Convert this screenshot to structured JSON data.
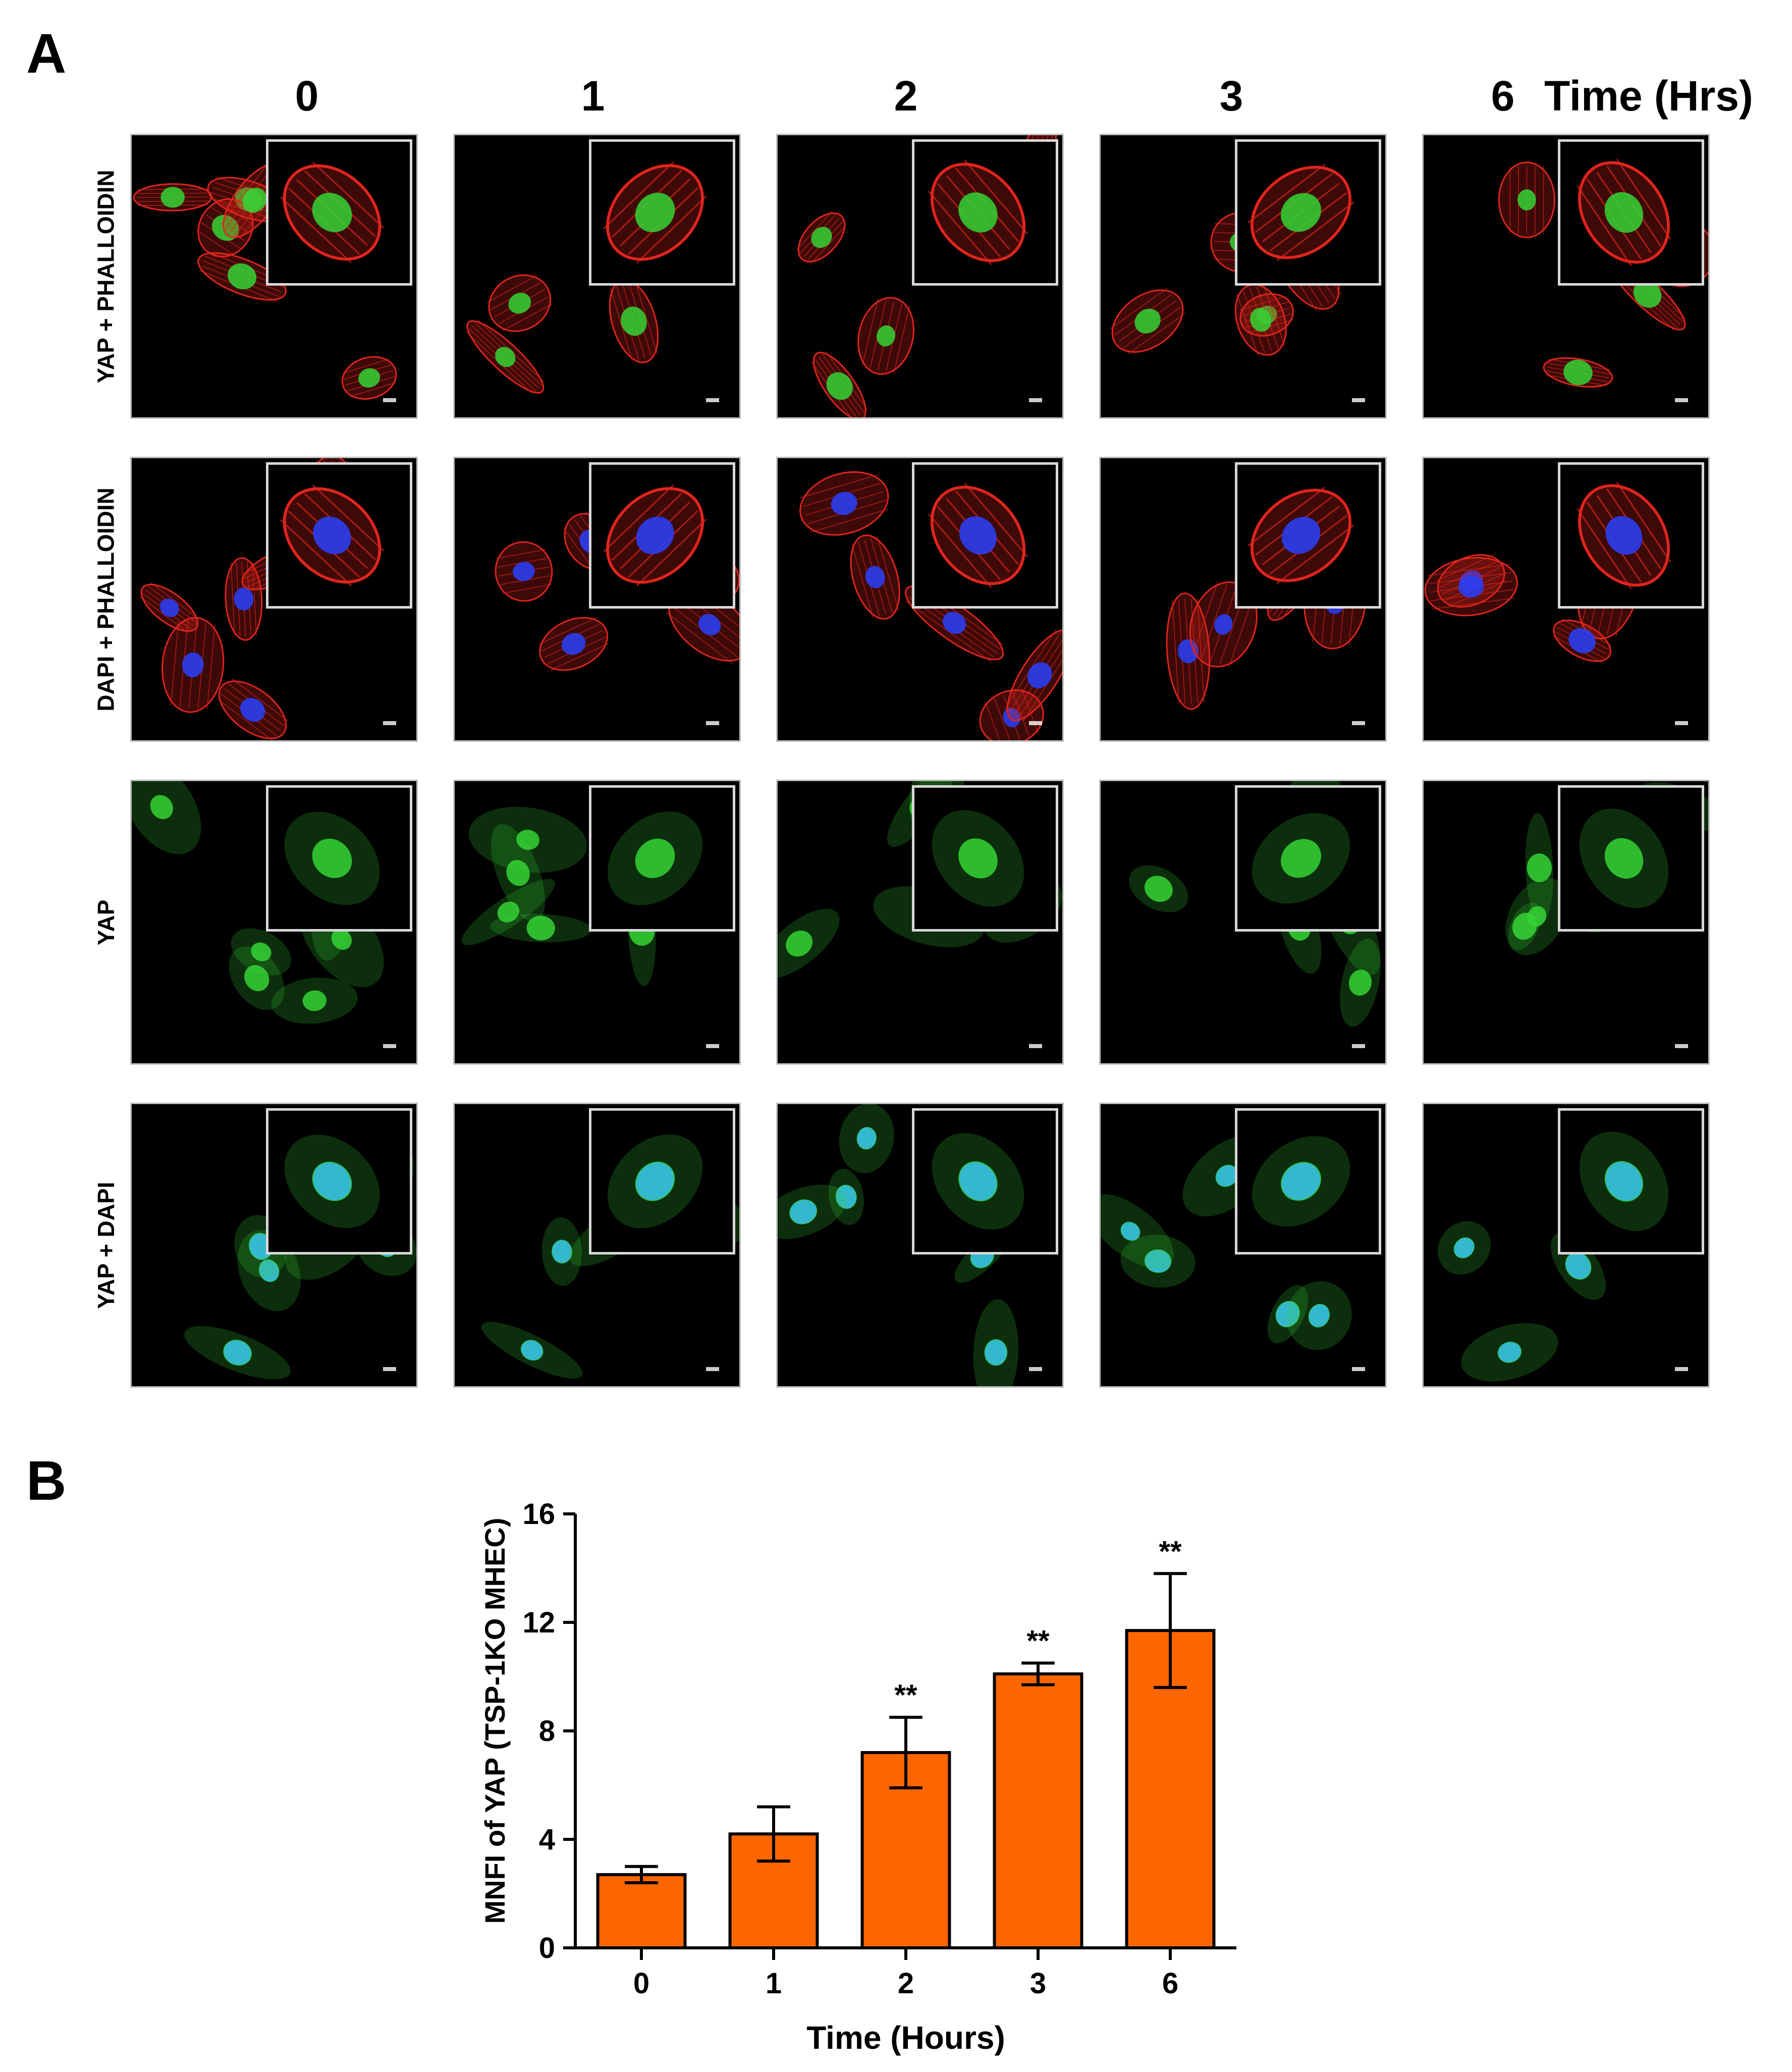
{
  "figure": {
    "panel_a_label": "A",
    "panel_b_label": "B",
    "time_axis_label": "Time (Hrs)",
    "columns": [
      "0",
      "1",
      "2",
      "3",
      "6"
    ],
    "rows": [
      {
        "label": "YAP + PHALLOIDIN",
        "stain": "yap_phalloidin"
      },
      {
        "label": "DAPI + PHALLOIDIN",
        "stain": "dapi_phalloidin"
      },
      {
        "label": "YAP",
        "stain": "yap"
      },
      {
        "label": "YAP + DAPI",
        "stain": "yap_dapi"
      }
    ],
    "colors": {
      "yap": "#35d335",
      "phalloidin": "#e0241d",
      "dapi": "#2a3df0",
      "bar_fill": "#ff6600"
    }
  },
  "chart_data": {
    "type": "bar",
    "title": "",
    "xlabel": "Time (Hours)",
    "ylabel": "MNFI of YAP (TSP-1KO MHEC)",
    "categories": [
      "0",
      "1",
      "2",
      "3",
      "6"
    ],
    "values": [
      2.7,
      4.2,
      7.2,
      10.1,
      11.7
    ],
    "error": [
      0.3,
      1.0,
      1.3,
      0.4,
      2.1
    ],
    "annotations": [
      "",
      "",
      "**",
      "**",
      "**"
    ],
    "ylim": [
      0,
      16
    ],
    "yticks": [
      "0",
      "4",
      "8",
      "12",
      "16"
    ],
    "grid": false,
    "legend": "none"
  }
}
